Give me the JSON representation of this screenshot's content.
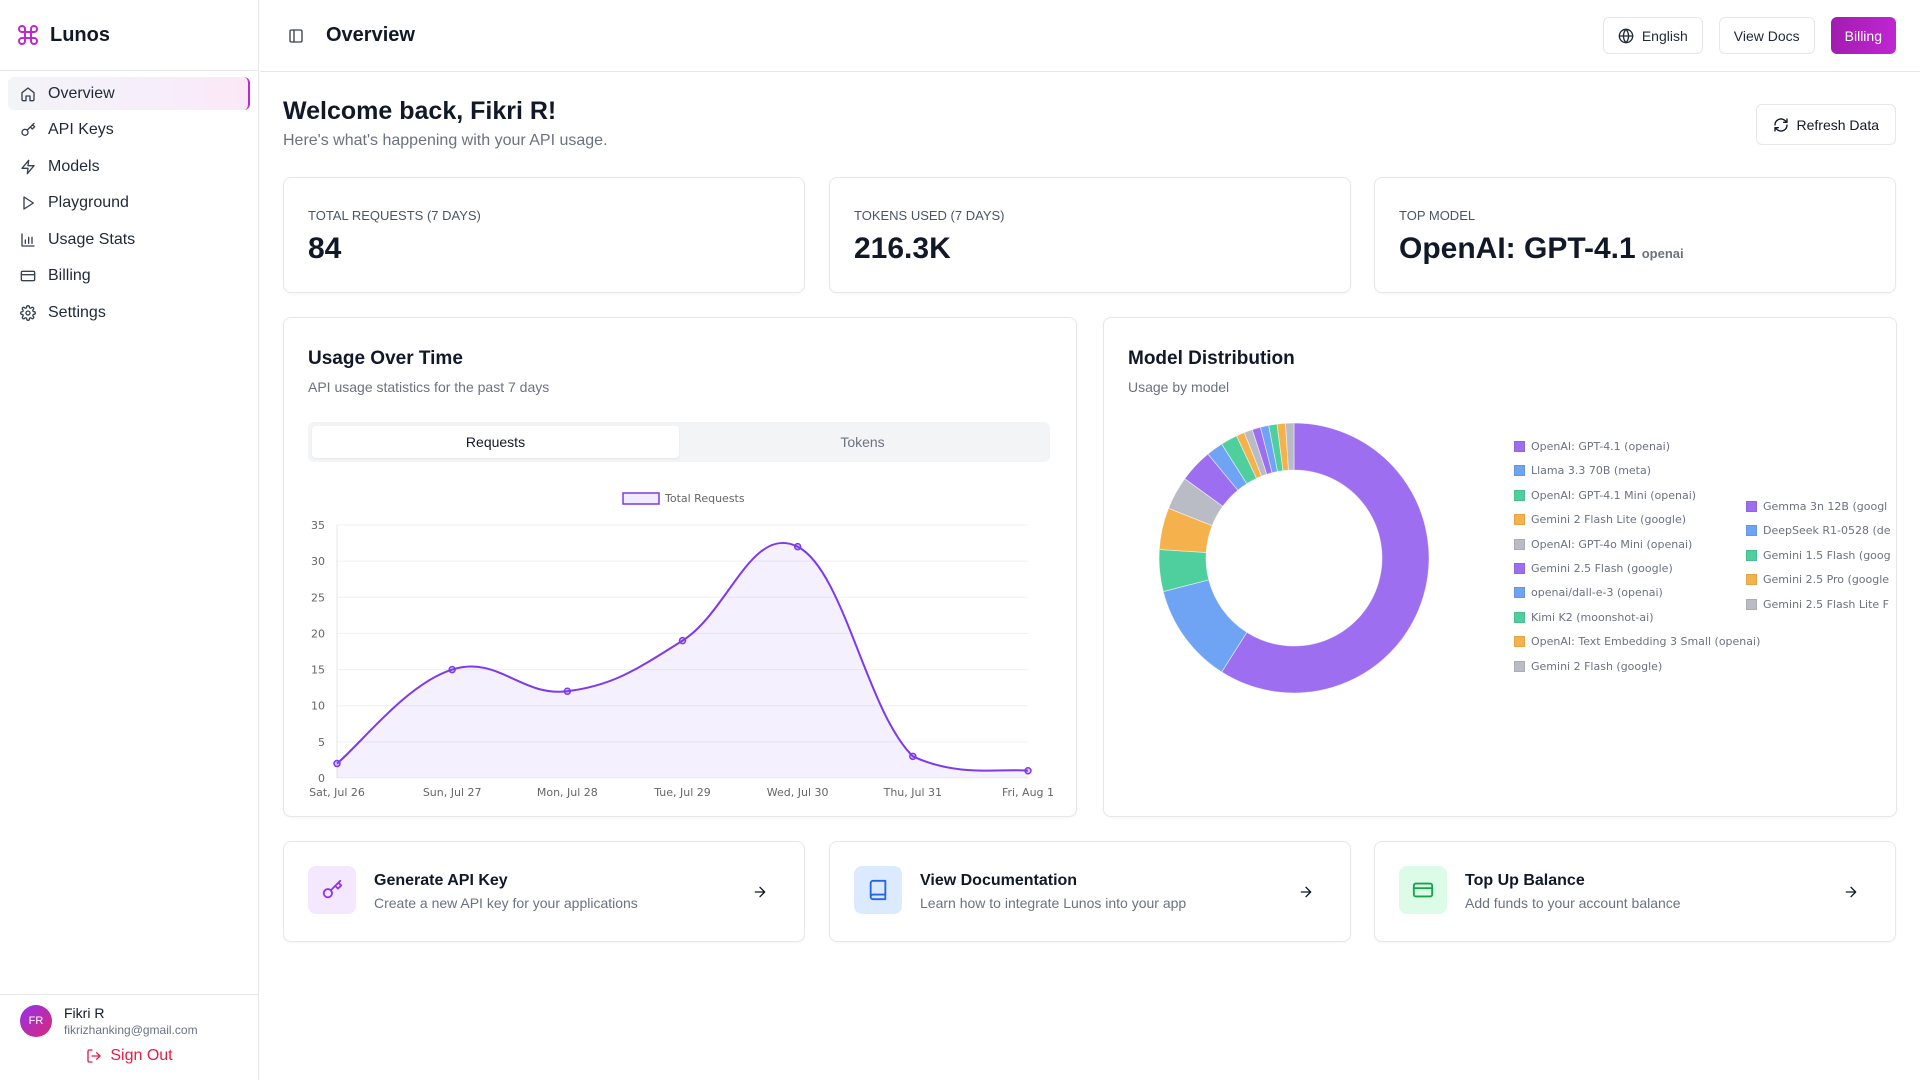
{
  "app": {
    "name": "Lunos"
  },
  "sidebar": {
    "items": [
      {
        "label": "Overview",
        "icon": "home-icon",
        "active": true
      },
      {
        "label": "API Keys",
        "icon": "key-icon"
      },
      {
        "label": "Models",
        "icon": "bolt-icon"
      },
      {
        "label": "Playground",
        "icon": "play-icon"
      },
      {
        "label": "Usage Stats",
        "icon": "bar-chart-icon"
      },
      {
        "label": "Billing",
        "icon": "credit-card-icon"
      },
      {
        "label": "Settings",
        "icon": "gear-icon"
      }
    ]
  },
  "user": {
    "initials": "FR",
    "name": "Fikri R",
    "email": "fikrizhanking@gmail.com",
    "signout_label": "Sign Out"
  },
  "header": {
    "title": "Overview",
    "language_label": "English",
    "docs_label": "View Docs",
    "billing_label": "Billing"
  },
  "welcome": {
    "title": "Welcome back, Fikri R!",
    "subtitle": "Here's what's happening with your API usage.",
    "refresh_label": "Refresh Data"
  },
  "stats": {
    "requests": {
      "label": "TOTAL REQUESTS (7 DAYS)",
      "value": "84"
    },
    "tokens": {
      "label": "TOKENS USED (7 DAYS)",
      "value": "216.3K"
    },
    "top_model": {
      "label": "TOP MODEL",
      "value": "OpenAI: GPT-4.1",
      "provider": "openai"
    }
  },
  "usage_card": {
    "title": "Usage Over Time",
    "description": "API usage statistics for the past 7 days",
    "tabs": [
      "Requests",
      "Tokens"
    ],
    "active_tab": 0
  },
  "distribution_card": {
    "title": "Model Distribution",
    "description": "Usage by model"
  },
  "quick_actions": [
    {
      "title": "Generate API Key",
      "description": "Create a new API key for your applications",
      "icon": "key-icon"
    },
    {
      "title": "View Documentation",
      "description": "Learn how to integrate Lunos into your app",
      "icon": "book-icon"
    },
    {
      "title": "Top Up Balance",
      "description": "Add funds to your account balance",
      "icon": "credit-card-icon"
    }
  ],
  "colors": {
    "accent": "#c026d3",
    "line": "#7c3aed",
    "purple": "#9d6ff0",
    "blue": "#6fa3f4",
    "green": "#4fce9e",
    "orange": "#f5b24c",
    "gray": "#b9bcc4"
  },
  "chart_data": [
    {
      "type": "area",
      "title": "",
      "legend": [
        "Total Requests"
      ],
      "legend_position": "top-center",
      "categories": [
        "Sat, Jul 26",
        "Sun, Jul 27",
        "Mon, Jul 28",
        "Tue, Jul 29",
        "Wed, Jul 30",
        "Thu, Jul 31",
        "Fri, Aug 1"
      ],
      "series": [
        {
          "name": "Total Requests",
          "values": [
            2,
            15,
            12,
            19,
            32,
            3,
            1
          ]
        }
      ],
      "ylim": [
        0,
        35
      ],
      "yticks": [
        0,
        5,
        10,
        15,
        20,
        25,
        30,
        35
      ],
      "grid": true
    },
    {
      "type": "pie",
      "donut": true,
      "legend_position": "right",
      "labels": [
        "OpenAI: GPT-4.1 (openai)",
        "Llama 3.3 70B (meta)",
        "OpenAI: GPT-4.1 Mini (openai)",
        "Gemini 2 Flash Lite (google)",
        "OpenAI: GPT-4o Mini (openai)",
        "Gemini 2.5 Flash (google)",
        "openai/dall-e-3 (openai)",
        "Kimi K2 (moonshot-ai)",
        "OpenAI: Text Embedding 3 Small (openai)",
        "Gemini 2 Flash (google)",
        "Gemma 3n 12B (googl",
        "DeepSeek R1-0528 (de",
        "Gemini 1.5 Flash (goog",
        "Gemini 2.5 Pro (google",
        "Gemini 2.5 Flash Lite F"
      ],
      "values": [
        59,
        12,
        5,
        5,
        4,
        4,
        2,
        2,
        1,
        1,
        1,
        1,
        1,
        1,
        1
      ],
      "slice_colors": [
        "#9d6ff0",
        "#6fa3f4",
        "#4fce9e",
        "#f5b24c",
        "#b9bcc4",
        "#9d6ff0",
        "#6fa3f4",
        "#4fce9e",
        "#f5b24c",
        "#b9bcc4",
        "#9d6ff0",
        "#6fa3f4",
        "#4fce9e",
        "#f5b24c",
        "#b9bcc4"
      ]
    }
  ]
}
